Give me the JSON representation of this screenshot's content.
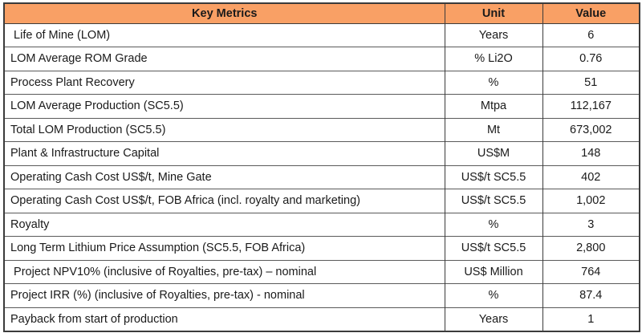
{
  "colors": {
    "header_bg": "#F9A065",
    "border_dark": "#3B3B3B",
    "row_line": "#5A5A5A",
    "text": "#1A1A1A"
  },
  "table": {
    "columns": [
      "Key Metrics",
      "Unit",
      "Value"
    ],
    "rows": [
      {
        "metric": " Life of Mine (LOM)",
        "unit": "Years",
        "value": "6"
      },
      {
        "metric": "LOM Average ROM Grade",
        "unit": "% Li2O",
        "value": "0.76"
      },
      {
        "metric": "Process Plant Recovery",
        "unit": "%",
        "value": "51"
      },
      {
        "metric": "LOM Average Production (SC5.5)",
        "unit": "Mtpa",
        "value": "112,167"
      },
      {
        "metric": "Total LOM Production (SC5.5)",
        "unit": "Mt",
        "value": "673,002"
      },
      {
        "metric": "Plant & Infrastructure Capital",
        "unit": "US$M",
        "value": "148"
      },
      {
        "metric": "Operating Cash Cost US$/t, Mine Gate",
        "unit": "US$/t SC5.5",
        "value": "402"
      },
      {
        "metric": "Operating Cash Cost US$/t, FOB Africa (incl. royalty and marketing)",
        "unit": "US$/t SC5.5",
        "value": "1,002"
      },
      {
        "metric": "Royalty",
        "unit": "%",
        "value": "3"
      },
      {
        "metric": "Long Term Lithium Price Assumption (SC5.5, FOB Africa)",
        "unit": "US$/t SC5.5",
        "value": "2,800"
      },
      {
        "metric": " Project NPV10% (inclusive of Royalties, pre-tax) – nominal",
        "unit": "US$ Million",
        "value": "764"
      },
      {
        "metric": "Project IRR (%) (inclusive of Royalties, pre-tax) - nominal",
        "unit": "%",
        "value": "87.4"
      },
      {
        "metric": "Payback from start of production",
        "unit": "Years",
        "value": "1"
      }
    ]
  }
}
